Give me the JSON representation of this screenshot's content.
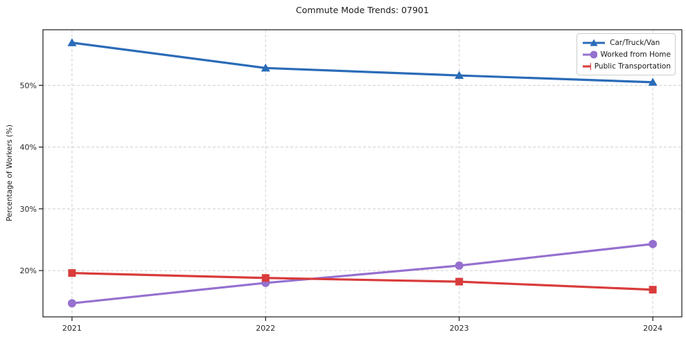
{
  "chart_data": {
    "type": "line",
    "title": "Commute Mode Trends: 07901",
    "xlabel": "",
    "ylabel": "Percentage of Workers (%)",
    "categories": [
      "2021",
      "2022",
      "2023",
      "2024"
    ],
    "series": [
      {
        "name": "Car/Truck/Van",
        "color": "#2a6bb8",
        "marker": "triangle",
        "values": [
          56.9,
          52.8,
          51.6,
          50.5
        ]
      },
      {
        "name": "Worked from Home",
        "color": "#9570cf",
        "marker": "circle",
        "values": [
          14.7,
          18.0,
          20.8,
          24.3
        ]
      },
      {
        "name": "Public Transportation",
        "color": "#d93b3b",
        "marker": "square",
        "values": [
          19.6,
          18.8,
          18.2,
          16.9
        ]
      }
    ],
    "yticks": [
      20,
      30,
      40,
      50
    ],
    "ytick_labels": [
      "20%",
      "30%",
      "40%",
      "50%"
    ],
    "ylim": [
      12.5,
      59.0
    ],
    "grid": true,
    "legend_position": "top-right"
  },
  "colors": {
    "grid": "#cfcfcf",
    "axis": "#1a1a1a",
    "tick_label": "#262626",
    "background": "#ffffff",
    "legend_border": "#cccccc"
  }
}
